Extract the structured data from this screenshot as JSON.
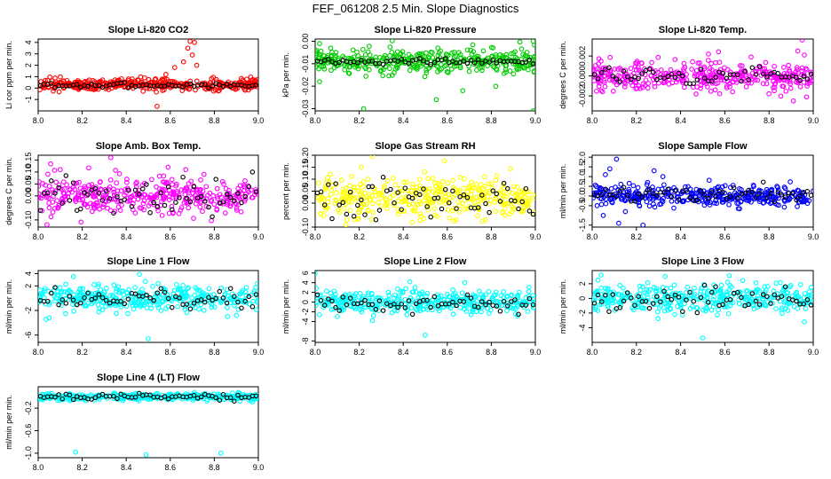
{
  "figure": {
    "title": "FEF_061208  2.5 Min. Slope Diagnostics"
  },
  "chart_data": [
    {
      "type": "scatter",
      "title": "Slope Li-820 CO2",
      "ylabel": "Li cor ppm per min.",
      "xlim": [
        8.0,
        9.0
      ],
      "ylim": [
        -2,
        4.3
      ],
      "x_ticks": [
        "8.0",
        "8.2",
        "8.4",
        "8.6",
        "8.8",
        "9.0"
      ],
      "y_ticks": [
        "-1",
        "0",
        "1",
        "2",
        "3",
        "4"
      ],
      "color": "#ff0000",
      "center": 0.3,
      "spread": 0.25,
      "black_center": 0.25,
      "black_spread": 0.1,
      "outliers": [
        {
          "x": 8.54,
          "y": -1.6
        },
        {
          "x": 8.62,
          "y": 1.8
        },
        {
          "x": 8.66,
          "y": 2.3
        },
        {
          "x": 8.68,
          "y": 3.5
        },
        {
          "x": 8.69,
          "y": 4.1
        },
        {
          "x": 8.71,
          "y": 4.0
        },
        {
          "x": 8.7,
          "y": 2.9
        },
        {
          "x": 8.72,
          "y": 2.0
        },
        {
          "x": 8.58,
          "y": 1.2
        }
      ]
    },
    {
      "type": "scatter",
      "title": "Slope Li-820 Pressure",
      "ylabel": "kPa per min.",
      "xlim": [
        8.0,
        9.0
      ],
      "ylim": [
        -0.031,
        0.001
      ],
      "x_ticks": [
        "8.0",
        "8.2",
        "8.4",
        "8.6",
        "8.8",
        "9.0"
      ],
      "y_ticks": [
        "-0.03",
        "-0.02",
        "-0.01",
        "0.00"
      ],
      "color": "#00cc00",
      "center": -0.009,
      "spread": 0.0025,
      "black_center": -0.009,
      "black_spread": 0.0006,
      "outliers": [
        {
          "x": 8.02,
          "y": -0.018
        },
        {
          "x": 8.02,
          "y": -0.001
        },
        {
          "x": 8.22,
          "y": -0.03
        },
        {
          "x": 8.55,
          "y": -0.026
        },
        {
          "x": 8.67,
          "y": -0.022
        },
        {
          "x": 8.82,
          "y": -0.02
        },
        {
          "x": 8.99,
          "y": -0.031
        },
        {
          "x": 8.93,
          "y": -0.0003
        },
        {
          "x": 8.99,
          "y": 0.0
        }
      ]
    },
    {
      "type": "scatter",
      "title": "Slope Li-820 Temp.",
      "ylabel": "degrees C per min.",
      "xlim": [
        8.0,
        9.0
      ],
      "ylim": [
        -0.0035,
        0.0037
      ],
      "x_ticks": [
        "8.0",
        "8.2",
        "8.4",
        "8.6",
        "8.8",
        "9.0"
      ],
      "y_ticks": [
        "-0.002",
        "0.000",
        "0.002"
      ],
      "color": "#ff00ff",
      "center": 0.0,
      "spread": 0.0007,
      "black_center": 0.0,
      "black_spread": 0.0004,
      "outliers": [
        {
          "x": 8.95,
          "y": 0.0036
        },
        {
          "x": 8.93,
          "y": 0.0025
        },
        {
          "x": 8.96,
          "y": 0.0021
        },
        {
          "x": 8.97,
          "y": -0.0021
        },
        {
          "x": 8.91,
          "y": -0.0025
        },
        {
          "x": 8.04,
          "y": 0.0015
        },
        {
          "x": 8.95,
          "y": 0.0008
        }
      ]
    },
    {
      "type": "scatter",
      "title": "Slope Amb. Box Temp.",
      "ylabel": "degrees C per min.",
      "xlim": [
        8.0,
        9.0
      ],
      "ylim": [
        -0.13,
        0.17
      ],
      "x_ticks": [
        "8.0",
        "8.2",
        "8.4",
        "8.6",
        "8.8",
        "9.0"
      ],
      "y_ticks": [
        "-0.10",
        "0.00",
        "0.05",
        "0.10",
        "0.15"
      ],
      "color": "#ff00ff",
      "center": 0.0,
      "spread": 0.04,
      "black_center": 0.0,
      "black_spread": 0.04,
      "outliers": [
        {
          "x": 8.33,
          "y": 0.16
        },
        {
          "x": 8.04,
          "y": -0.12
        },
        {
          "x": 8.1,
          "y": 0.11
        },
        {
          "x": 8.59,
          "y": 0.12
        },
        {
          "x": 8.67,
          "y": 0.11
        }
      ]
    },
    {
      "type": "scatter",
      "title": "Slope Gas Stream RH",
      "ylabel": "percent per min.",
      "xlim": [
        8.0,
        9.0
      ],
      "ylim": [
        -0.1,
        0.2
      ],
      "x_ticks": [
        "8.0",
        "8.2",
        "8.4",
        "8.6",
        "8.8",
        "9.0"
      ],
      "y_ticks": [
        "-0.10",
        "0.00",
        "0.05",
        "0.10",
        "0.15",
        "0.20"
      ],
      "color": "#ffff00",
      "center": 0.02,
      "spread": 0.04,
      "black_center": 0.02,
      "black_spread": 0.04,
      "outliers": [
        {
          "x": 8.26,
          "y": 0.195
        },
        {
          "x": 8.21,
          "y": 0.15
        },
        {
          "x": 8.14,
          "y": -0.09
        },
        {
          "x": 8.58,
          "y": 0.09
        },
        {
          "x": 8.44,
          "y": -0.08
        }
      ]
    },
    {
      "type": "scatter",
      "title": "Slope Sample Flow",
      "ylabel": "ml/min per min.",
      "xlim": [
        8.0,
        9.0
      ],
      "ylim": [
        -1.6,
        2.1
      ],
      "x_ticks": [
        "8.0",
        "8.2",
        "8.4",
        "8.6",
        "8.8",
        "9.0"
      ],
      "y_ticks": [
        "-1.5",
        "-0.5",
        "0.0",
        "0.5",
        "1.0",
        "1.5",
        "2.0"
      ],
      "color": "#0000ff",
      "center": 0.0,
      "spread": 0.25,
      "black_center": 0.1,
      "black_spread": 0.2,
      "outliers": [
        {
          "x": 8.11,
          "y": 1.9
        },
        {
          "x": 8.08,
          "y": 1.4
        },
        {
          "x": 8.06,
          "y": 1.1
        },
        {
          "x": 8.12,
          "y": -1.4
        },
        {
          "x": 8.23,
          "y": -1.5
        },
        {
          "x": 8.05,
          "y": -1.0
        },
        {
          "x": 8.28,
          "y": 1.3
        },
        {
          "x": 8.32,
          "y": 1.0
        },
        {
          "x": 8.15,
          "y": -0.8
        }
      ]
    },
    {
      "type": "scatter",
      "title": "Slope Line 1 Flow",
      "ylabel": "ml/min per min.",
      "xlim": [
        8.0,
        9.0
      ],
      "ylim": [
        -7.2,
        4.5
      ],
      "x_ticks": [
        "8.0",
        "8.2",
        "8.4",
        "8.6",
        "8.8",
        "9.0"
      ],
      "y_ticks": [
        "-6",
        "-2",
        "2",
        "4"
      ],
      "color": "#00ffff",
      "center": 0.0,
      "spread": 1.0,
      "black_center": 0.0,
      "black_spread": 0.8,
      "outliers": [
        {
          "x": 8.5,
          "y": -6.6
        },
        {
          "x": 8.16,
          "y": 3.5
        },
        {
          "x": 8.46,
          "y": 3.9
        },
        {
          "x": 8.86,
          "y": -3.0
        },
        {
          "x": 8.05,
          "y": -3.2
        }
      ]
    },
    {
      "type": "scatter",
      "title": "Slope Line 2 Flow",
      "ylabel": "ml/min per min.",
      "xlim": [
        8.0,
        9.0
      ],
      "ylim": [
        -8.3,
        6.5
      ],
      "x_ticks": [
        "8.0",
        "8.2",
        "8.4",
        "8.6",
        "8.8",
        "9.0"
      ],
      "y_ticks": [
        "-8",
        "-4",
        "-2",
        "0",
        "2",
        "4",
        "6"
      ],
      "color": "#00ffff",
      "center": 0.0,
      "spread": 1.1,
      "black_center": 0.0,
      "black_spread": 0.8,
      "outliers": [
        {
          "x": 8.0,
          "y": 5.9
        },
        {
          "x": 8.5,
          "y": -6.8
        },
        {
          "x": 8.43,
          "y": 4.2
        },
        {
          "x": 8.68,
          "y": 4.0
        },
        {
          "x": 8.26,
          "y": -3.8
        }
      ]
    },
    {
      "type": "scatter",
      "title": "Slope Line 3 Flow",
      "ylabel": "ml/min per min.",
      "xlim": [
        8.0,
        9.0
      ],
      "ylim": [
        -6.0,
        3.8
      ],
      "x_ticks": [
        "8.0",
        "8.2",
        "8.4",
        "8.6",
        "8.8",
        "9.0"
      ],
      "y_ticks": [
        "-4",
        "-2",
        "0",
        "2"
      ],
      "color": "#00ffff",
      "center": 0.0,
      "spread": 0.9,
      "black_center": 0.0,
      "black_spread": 0.8,
      "outliers": [
        {
          "x": 8.5,
          "y": -5.4
        },
        {
          "x": 8.04,
          "y": 3.2
        },
        {
          "x": 8.96,
          "y": -3.2
        },
        {
          "x": 8.33,
          "y": 3.0
        },
        {
          "x": 8.62,
          "y": 3.1
        }
      ]
    },
    {
      "type": "scatter",
      "title": "Slope Line 4 (LT) Flow",
      "ylabel": "ml/min per min.",
      "xlim": [
        8.0,
        9.0
      ],
      "ylim": [
        -1.08,
        0.18
      ],
      "x_ticks": [
        "8.0",
        "8.2",
        "8.4",
        "8.6",
        "8.8",
        "9.0"
      ],
      "y_ticks": [
        "-1.0",
        "-0.6",
        "-0.2"
      ],
      "color": "#00ffff",
      "center": 0.0,
      "spread": 0.03,
      "black_center": 0.0,
      "black_spread": 0.025,
      "outliers": [
        {
          "x": 8.17,
          "y": -0.98
        },
        {
          "x": 8.49,
          "y": -1.03
        },
        {
          "x": 8.83,
          "y": -1.0
        }
      ]
    }
  ]
}
